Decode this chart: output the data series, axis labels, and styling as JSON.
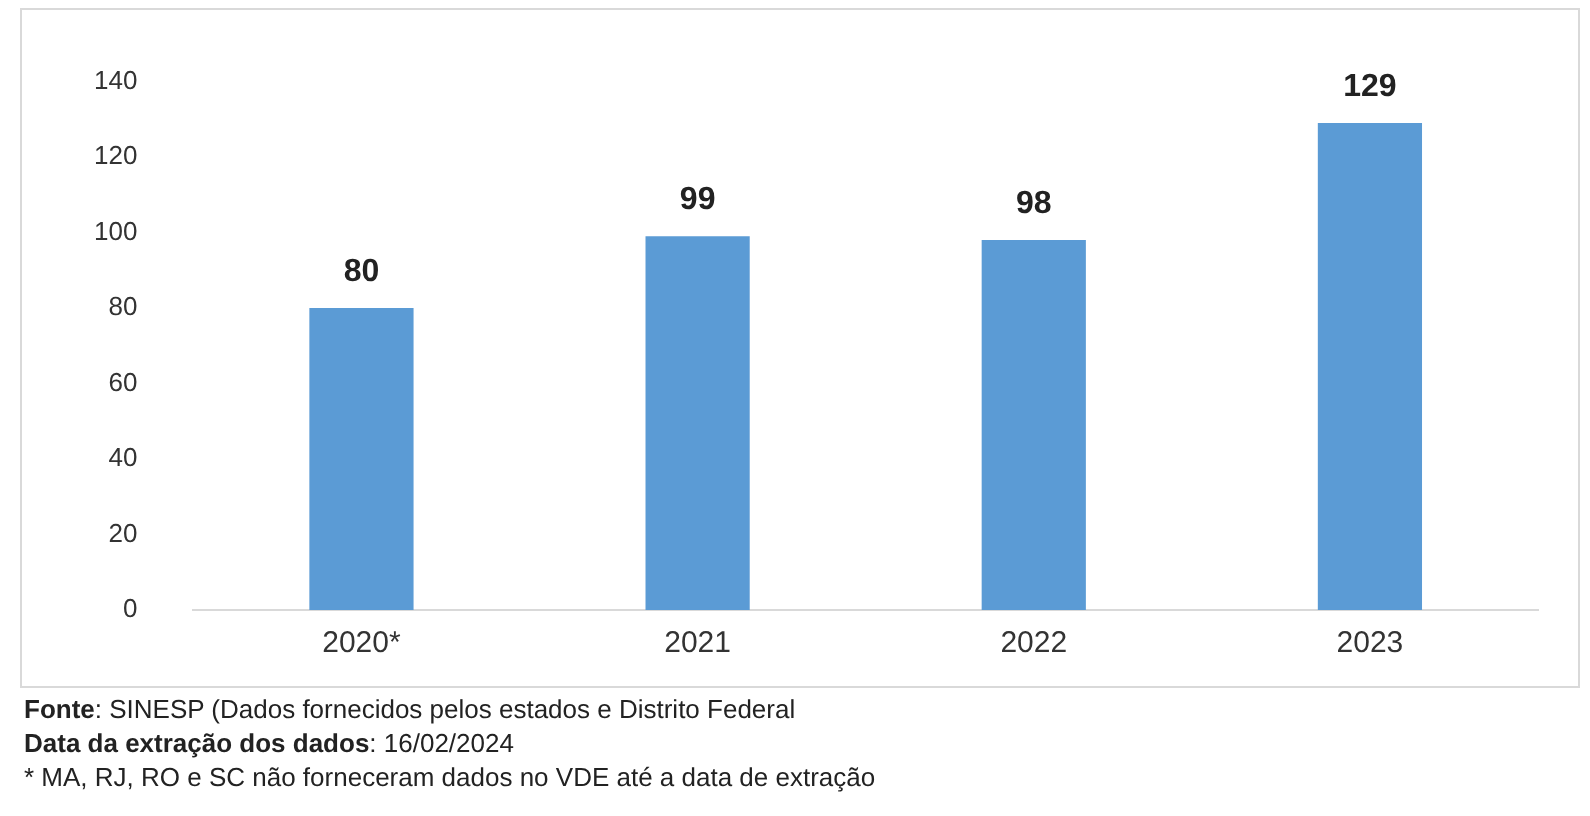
{
  "chart_data": {
    "type": "bar",
    "categories": [
      "2020*",
      "2021",
      "2022",
      "2023"
    ],
    "values": [
      80,
      99,
      98,
      129
    ],
    "color": "#5b9bd5",
    "ylim": [
      0,
      140
    ],
    "yticks": [
      0,
      20,
      40,
      60,
      80,
      100,
      120,
      140
    ],
    "grid": false,
    "legend": false,
    "data_labels": true,
    "annotations": [
      "Fonte: SINESP (Dados fornecidos pelos estados e Distrito Federal",
      "Data da extração dos dados: 16/02/2024",
      "* MA, RJ, RO e SC não forneceram dados no VDE até a data de extração"
    ]
  }
}
